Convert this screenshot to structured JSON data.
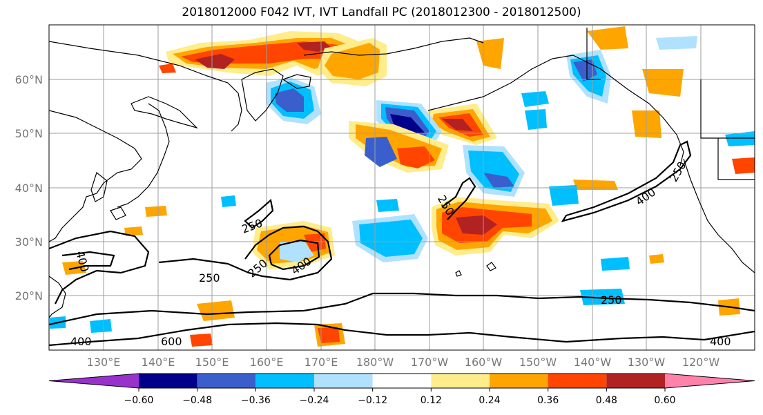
{
  "title": "2018012000 F042 IVT, IVT Landfall PC (2018012300 - 2018012500)",
  "lat_labels": [
    "60°N",
    "50°N",
    "40°N",
    "30°N",
    "20°N"
  ],
  "lon_labels": [
    "130°E",
    "140°E",
    "150°E",
    "160°E",
    "170°E",
    "180°W",
    "170°W",
    "160°W",
    "150°W",
    "140°W",
    "130°W",
    "120°W"
  ],
  "contour_labels": [
    "400",
    "250",
    "250",
    "400",
    "250",
    "250",
    "400",
    "250",
    "250",
    "400",
    "600",
    "400"
  ],
  "colorbar": {
    "ticks": [
      "−0.60",
      "−0.48",
      "−0.36",
      "−0.24",
      "−0.12",
      "0.12",
      "0.24",
      "0.36",
      "0.48",
      "0.60"
    ],
    "colors": [
      "#9932CC",
      "#00008B",
      "#3A5FCD",
      "#00BFFF",
      "#B0E2FF",
      "#FFFFFF",
      "#FFEC8B",
      "#FFA500",
      "#FF4500",
      "#B22222",
      "#FF82AB"
    ]
  },
  "palette": {
    "purple": "#9932CC",
    "navy": "#00008B",
    "blue": "#3A5FCD",
    "sky": "#00BFFF",
    "lightblue": "#B0E2FF",
    "yellow": "#FFEC8B",
    "orange": "#FFA500",
    "redorange": "#FF4500",
    "darkred": "#B22222",
    "pink": "#FF82AB"
  }
}
